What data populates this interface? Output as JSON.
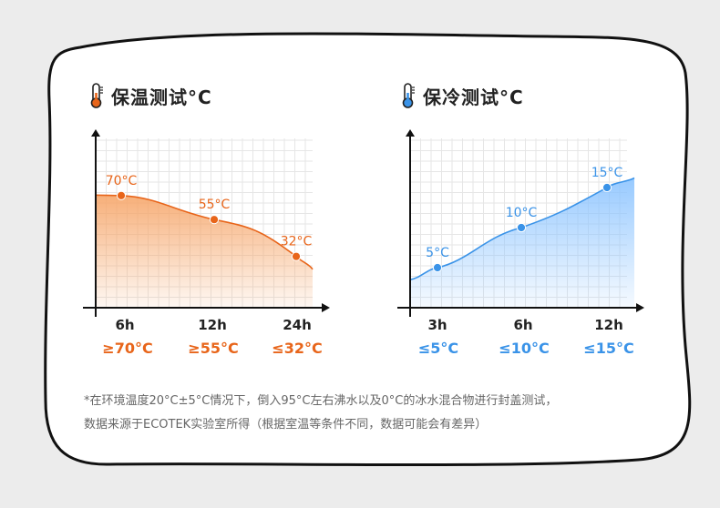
{
  "colors": {
    "warm": "#e8651a",
    "cold": "#3a93e8",
    "warm_fill": "#f6a66a",
    "cold_fill": "#8cc4ff",
    "background": "#ececec",
    "card": "#ffffff"
  },
  "warm_panel": {
    "title": "保温测试°C",
    "icon": "thermometer-warm-icon",
    "results": [
      "≥70°C",
      "≥55°C",
      "≤32°C"
    ]
  },
  "cold_panel": {
    "title": "保冷测试°C",
    "icon": "thermometer-cold-icon",
    "results": [
      "≤5°C",
      "≤10°C",
      "≤15°C"
    ]
  },
  "chart_data": [
    {
      "type": "area",
      "title": "保温测试°C",
      "categories": [
        "6h",
        "12h",
        "24h"
      ],
      "series": [
        {
          "values": [
            70,
            55,
            32
          ]
        }
      ],
      "data_labels": [
        "70°C",
        "55°C",
        "32°C"
      ],
      "ylim": [
        0,
        100
      ],
      "grid": true
    },
    {
      "type": "area",
      "title": "保冷测试°C",
      "categories": [
        "3h",
        "6h",
        "12h"
      ],
      "series": [
        {
          "values": [
            5,
            10,
            15
          ]
        }
      ],
      "data_labels": [
        "5°C",
        "10°C",
        "15°C"
      ],
      "ylim": [
        0,
        20
      ],
      "grid": true
    }
  ],
  "footnote": {
    "line1": "*在环境温度20°C±5°C情况下，倒入95°C左右沸水以及0°C的冰水混合物进行封盖测试，",
    "line2": "数据来源于ECOTEK实验室所得（根据室温等条件不同，数据可能会有差异）"
  }
}
